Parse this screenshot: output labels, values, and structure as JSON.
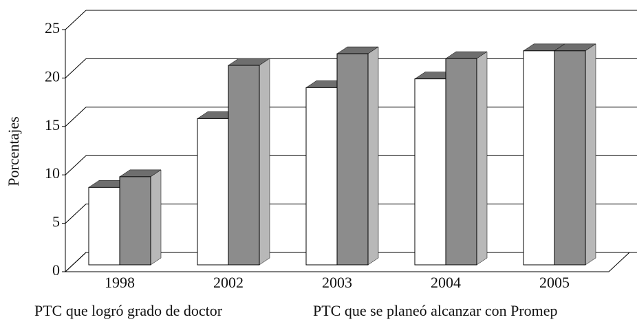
{
  "chart_data": {
    "type": "bar3d",
    "ylabel": "Porcentajes",
    "categories": [
      "1998",
      "2002",
      "2003",
      "2004",
      "2005"
    ],
    "series": [
      {
        "name": "PTC que logró grado de doctor",
        "color": "#ffffff",
        "values": [
          8,
          15.1,
          18.3,
          19.2,
          22.1
        ]
      },
      {
        "name": "PTC que se planeó alcanzar con Promep",
        "color": "#8c8c8c",
        "values": [
          9.1,
          20.6,
          21.8,
          21.3,
          22.1
        ]
      }
    ],
    "ylim": [
      0,
      25
    ],
    "yticks": [
      0,
      5,
      10,
      15,
      20,
      25
    ],
    "grid": true
  }
}
